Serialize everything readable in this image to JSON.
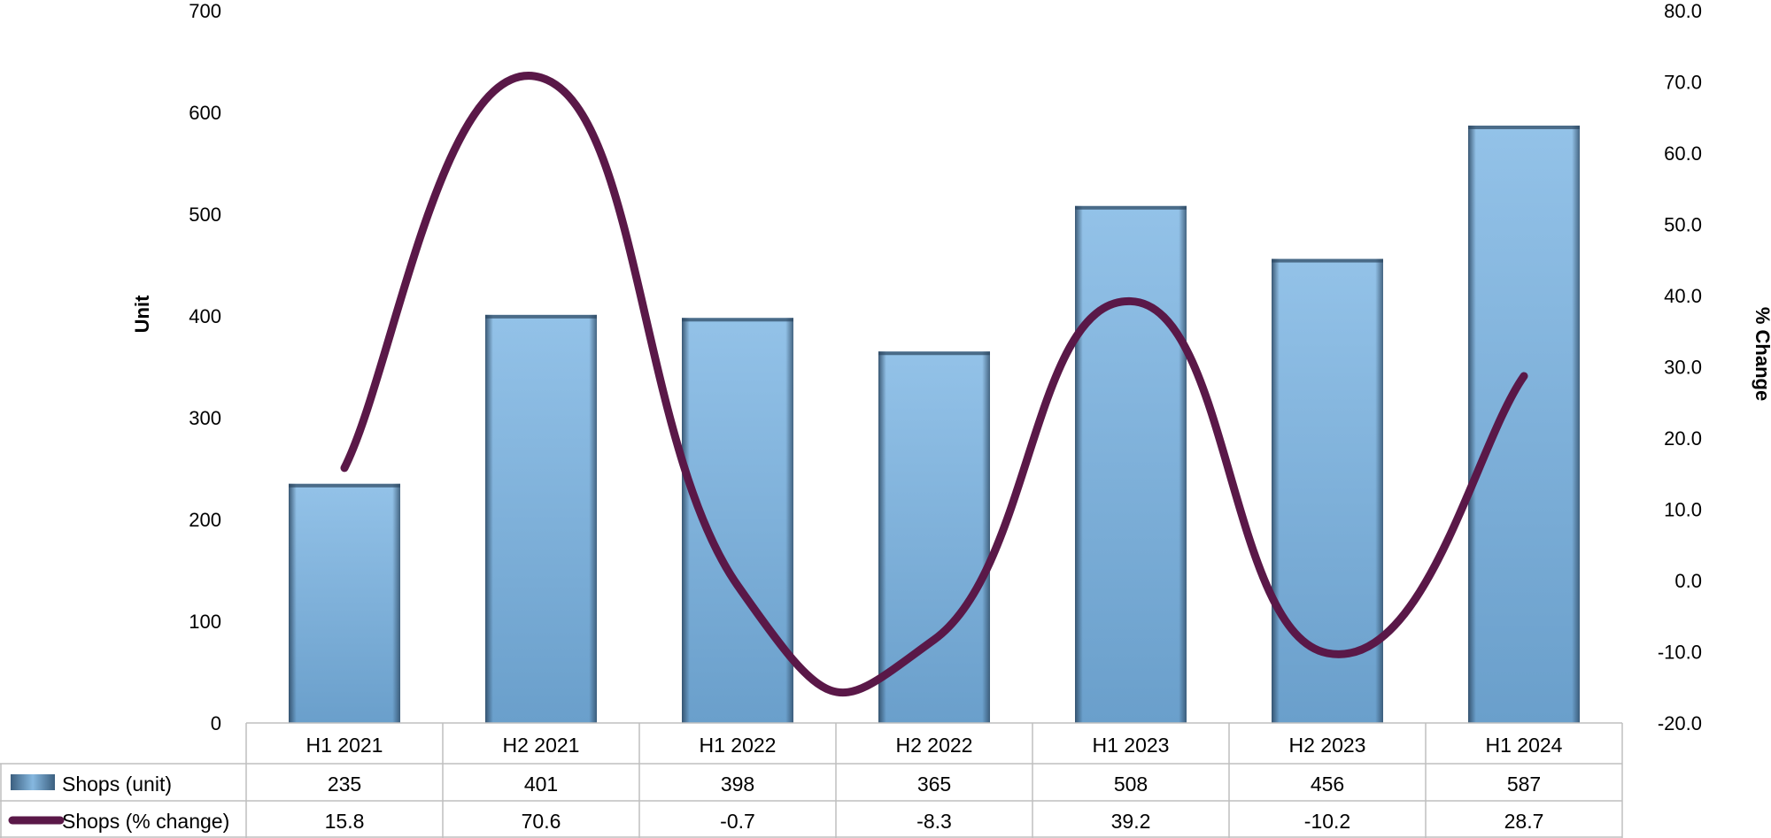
{
  "chart_data": {
    "type": "bar+line",
    "categories": [
      "H1 2021",
      "H2 2021",
      "H1 2022",
      "H2 2022",
      "H1 2023",
      "H2 2023",
      "H1 2024"
    ],
    "series": [
      {
        "name": "Shops (unit)",
        "type": "bar",
        "axis": "left",
        "color": "#7fb2dc",
        "values": [
          235,
          401,
          398,
          365,
          508,
          456,
          587
        ]
      },
      {
        "name": "Shops (% change)",
        "type": "line",
        "axis": "right",
        "color": "#5a1848",
        "values": [
          15.8,
          70.6,
          -0.7,
          -8.3,
          39.2,
          -10.2,
          28.7
        ]
      }
    ],
    "ylabel": "Unit",
    "y2label": "% Change",
    "ylim": [
      0,
      700
    ],
    "y2lim": [
      -20,
      80
    ],
    "yticks": [
      "0",
      "100",
      "200",
      "300",
      "400",
      "500",
      "600",
      "700"
    ],
    "y2ticks": [
      "-20.0",
      "-10.0",
      "0.0",
      "10.0",
      "20.0",
      "30.0",
      "40.0",
      "50.0",
      "60.0",
      "70.0",
      "80.0"
    ],
    "data_table": true,
    "grid": false
  }
}
